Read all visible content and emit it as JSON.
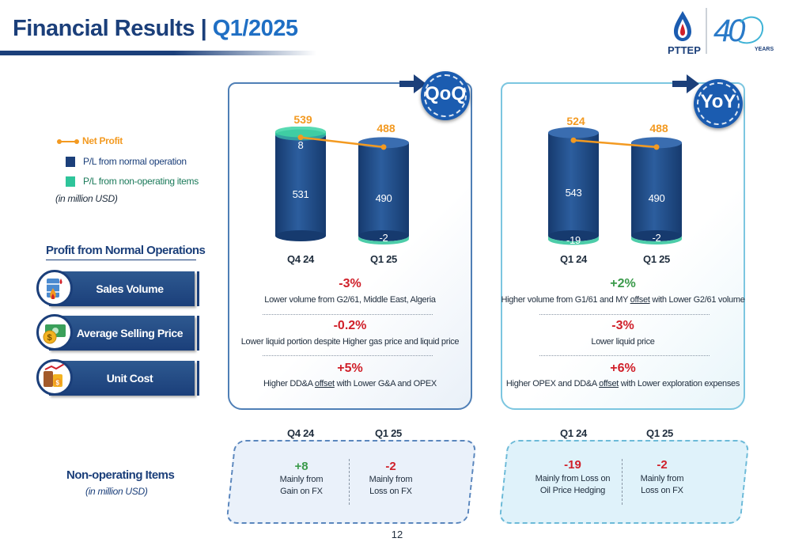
{
  "header": {
    "title_part1": "Financial Results | ",
    "title_part2": "Q1/2025",
    "logo_text": "PTTEP",
    "anniversary_number": "40",
    "anniversary_word": "YEARS"
  },
  "legend": {
    "net_profit": "Net Profit",
    "normal_operation": "P/L from normal operation",
    "non_operating": "P/L from non-operating items",
    "unit_note": "(in million USD)",
    "colors": {
      "net_profit": "#f39a21",
      "normal_operation": "#1b3f7a",
      "non_operating": "#2ec49a"
    }
  },
  "profit_section": {
    "title": "Profit from Normal Operations",
    "items": [
      {
        "label": "Sales Volume",
        "icon": "oil-barrel-flame-icon"
      },
      {
        "label": "Average Selling Price",
        "icon": "money-coin-icon"
      },
      {
        "label": "Unit Cost",
        "icon": "barrels-chart-icon"
      }
    ]
  },
  "qoq": {
    "badge": "QoQ",
    "bars": [
      {
        "category": "Q4 24",
        "net_profit": "539",
        "normal": "531",
        "non_operating": "8"
      },
      {
        "category": "Q1 25",
        "net_profit": "488",
        "normal": "490",
        "non_operating": "-2"
      }
    ],
    "drivers": [
      {
        "pct": "-3%",
        "desc": "Lower volume from G2/61, Middle East, Algeria"
      },
      {
        "pct": "-0.2%",
        "desc": "Lower liquid portion despite Higher gas price and liquid price"
      },
      {
        "pct": "+5%",
        "desc_pre": "Higher DD&A ",
        "desc_u": "offset",
        "desc_post": " with Lower G&A and OPEX"
      }
    ]
  },
  "yoy": {
    "badge": "YoY",
    "bars": [
      {
        "category": "Q1 24",
        "net_profit": "524",
        "normal": "543",
        "non_operating": "-19"
      },
      {
        "category": "Q1 25",
        "net_profit": "488",
        "normal": "490",
        "non_operating": "-2"
      }
    ],
    "drivers": [
      {
        "pct": "+2%",
        "desc_pre": "Higher volume from G1/61 and MY ",
        "desc_u": "offset",
        "desc_post": " with Lower G2/61 volume"
      },
      {
        "pct": "-3%",
        "desc": "Lower liquid price"
      },
      {
        "pct": "+6%",
        "desc_pre": "Higher OPEX and DD&A ",
        "desc_u": "offset",
        "desc_post": " with Lower exploration expenses"
      }
    ]
  },
  "non_operating": {
    "title": "Non-operating Items",
    "unit_note": "(in million USD)",
    "qoq": [
      {
        "period": "Q4 24",
        "value": "+8",
        "desc_line1": "Mainly from",
        "desc_line2": "Gain on FX"
      },
      {
        "period": "Q1 25",
        "value": "-2",
        "desc_line1": "Mainly from",
        "desc_line2": "Loss on FX"
      }
    ],
    "yoy": [
      {
        "period": "Q1 24",
        "value": "-19",
        "desc_line1": "Mainly from Loss on",
        "desc_line2": "Oil Price Hedging"
      },
      {
        "period": "Q1 25",
        "value": "-2",
        "desc_line1": "Mainly from",
        "desc_line2": "Loss on FX"
      }
    ]
  },
  "chart_data": [
    {
      "type": "bar",
      "title": "QoQ",
      "categories": [
        "Q4 24",
        "Q1 25"
      ],
      "series": [
        {
          "name": "P/L from normal operation",
          "values": [
            531,
            490
          ]
        },
        {
          "name": "P/L from non-operating items",
          "values": [
            8,
            -2
          ]
        },
        {
          "name": "Net Profit",
          "values": [
            539,
            488
          ]
        }
      ]
    },
    {
      "type": "bar",
      "title": "YoY",
      "categories": [
        "Q1 24",
        "Q1 25"
      ],
      "series": [
        {
          "name": "P/L from normal operation",
          "values": [
            543,
            490
          ]
        },
        {
          "name": "P/L from non-operating items",
          "values": [
            -19,
            -2
          ]
        },
        {
          "name": "Net Profit",
          "values": [
            524,
            488
          ]
        }
      ]
    }
  ],
  "page_number": "12"
}
